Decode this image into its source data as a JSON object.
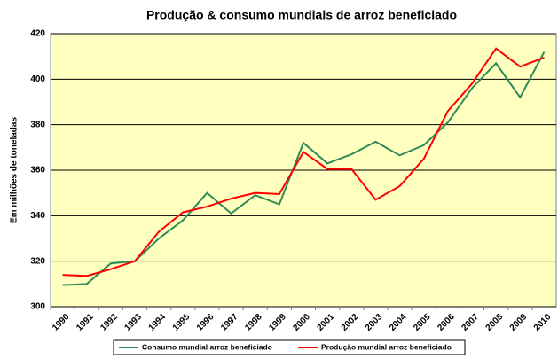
{
  "chart_data": {
    "type": "line",
    "title": "Produção & consumo mundiais de arroz beneficiado",
    "y_label": "Em milhões de toneladas",
    "categories": [
      "1990",
      "1991",
      "1992",
      "1993",
      "1994",
      "1995",
      "1996",
      "1997",
      "1998",
      "1999",
      "2000",
      "2001",
      "2002",
      "2003",
      "2004",
      "2005",
      "2006",
      "2007",
      "2008",
      "2009",
      "2010"
    ],
    "series": [
      {
        "name": "Consumo mundial arroz beneficiado",
        "color": "#2e8b57",
        "values": [
          309.5,
          310,
          319,
          320,
          330,
          338,
          350,
          341,
          349,
          345,
          372,
          363,
          367,
          372.5,
          366.5,
          371,
          381,
          396,
          407,
          392,
          412
        ]
      },
      {
        "name": "Produção mundial arroz beneficiado",
        "color": "#ff0000",
        "values": [
          314,
          313.5,
          316.5,
          320,
          333,
          341.5,
          344,
          347.5,
          350,
          349.5,
          368,
          360.5,
          360.5,
          347,
          353,
          365,
          386,
          398,
          413.5,
          405.5,
          409.5
        ]
      }
    ],
    "ylim": [
      300,
      420
    ],
    "yticks": [
      300,
      320,
      340,
      360,
      380,
      400,
      420
    ],
    "grid": true,
    "legend": "bottom",
    "background": "#ffffc0"
  }
}
